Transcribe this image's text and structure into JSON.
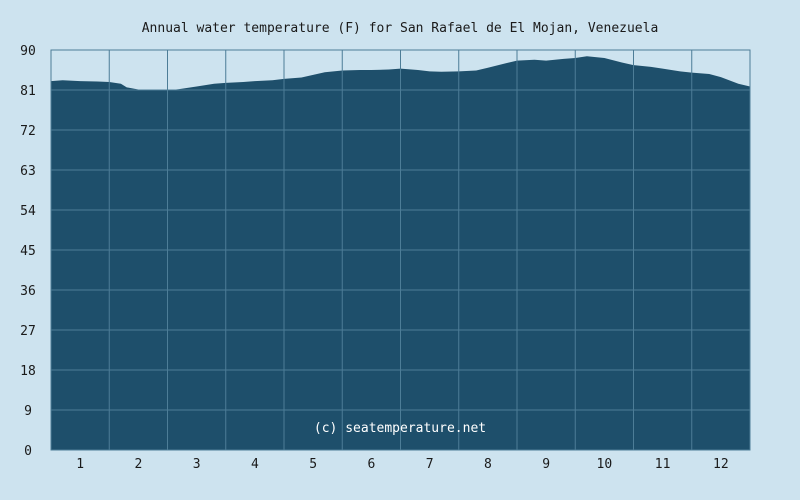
{
  "chart_data": {
    "type": "area",
    "title": "Annual water temperature (F) for San Rafael de El Mojan, Venezuela",
    "xlabel": "",
    "ylabel": "",
    "ylim": [
      0,
      90
    ],
    "yticks": [
      0,
      9,
      18,
      27,
      36,
      45,
      54,
      63,
      72,
      81,
      90
    ],
    "xlim": [
      0.5,
      12.5
    ],
    "xticks": [
      1,
      2,
      3,
      4,
      5,
      6,
      7,
      8,
      9,
      10,
      11,
      12
    ],
    "grid": true,
    "legend": "none",
    "colors": {
      "fill": "#1e4f6b",
      "grid": "#4d7d97",
      "background": "#cde3ef"
    },
    "x": [
      0.5,
      0.7,
      1.0,
      1.3,
      1.5,
      1.7,
      1.8,
      2.0,
      2.3,
      2.5,
      2.7,
      3.0,
      3.3,
      3.5,
      3.8,
      4.0,
      4.3,
      4.5,
      4.8,
      5.0,
      5.2,
      5.5,
      5.8,
      6.0,
      6.3,
      6.5,
      6.8,
      7.0,
      7.2,
      7.5,
      7.8,
      8.0,
      8.3,
      8.5,
      8.8,
      9.0,
      9.3,
      9.5,
      9.7,
      10.0,
      10.3,
      10.5,
      10.8,
      11.0,
      11.3,
      11.5,
      11.8,
      12.0,
      12.3,
      12.5
    ],
    "values": [
      83.0,
      83.2,
      83.0,
      82.9,
      82.8,
      82.4,
      81.6,
      81.1,
      81.0,
      80.9,
      81.2,
      81.8,
      82.4,
      82.6,
      82.8,
      83.0,
      83.2,
      83.5,
      83.8,
      84.4,
      85.0,
      85.4,
      85.5,
      85.5,
      85.6,
      85.8,
      85.5,
      85.2,
      85.1,
      85.2,
      85.4,
      86.0,
      87.0,
      87.6,
      87.8,
      87.6,
      88.0,
      88.2,
      88.6,
      88.2,
      87.2,
      86.6,
      86.2,
      85.8,
      85.2,
      84.9,
      84.6,
      83.9,
      82.4,
      81.8
    ]
  },
  "watermark": "(c) seatemperature.net"
}
